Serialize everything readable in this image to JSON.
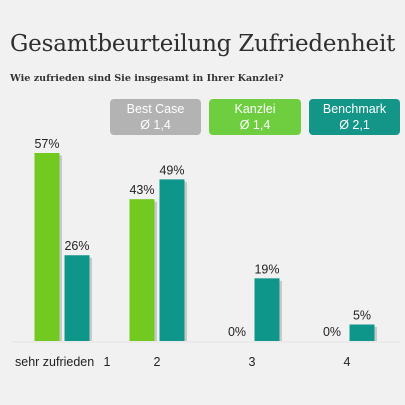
{
  "chart_data": {
    "type": "bar",
    "title": "Gesamtbeurteilung Zufriedenheit",
    "subtitle": "Wie zufrieden sind Sie insgesamt in Ihrer Kanzlei?",
    "categories": [
      "1",
      "2",
      "3",
      "4"
    ],
    "axis_first_label": "sehr zufrieden",
    "unit": "%",
    "ylim": [
      0,
      60
    ],
    "grid": false,
    "legend_position": "top-right",
    "legend": [
      {
        "name": "Best Case",
        "value": "Ø 1,4",
        "color": "#b3b3b3",
        "plotted": false
      },
      {
        "name": "Kanzlei",
        "value": "Ø 1,4",
        "color": "#6fce3f",
        "plotted": true
      },
      {
        "name": "Benchmark",
        "value": "Ø 2,1",
        "color": "#139588",
        "plotted": true
      }
    ],
    "series": [
      {
        "name": "Kanzlei",
        "color": "#72c91f",
        "values": [
          57,
          43,
          0,
          0
        ]
      },
      {
        "name": "Benchmark",
        "color": "#0f968a",
        "values": [
          26,
          49,
          19,
          5
        ]
      }
    ]
  }
}
